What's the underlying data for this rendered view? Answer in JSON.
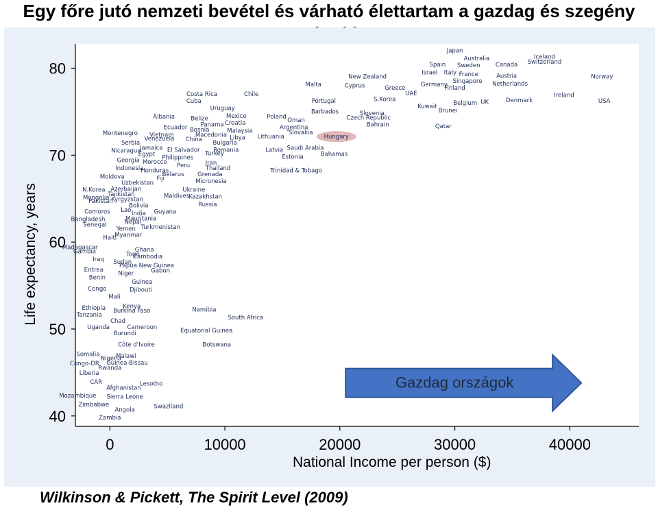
{
  "title": "Egy főre jutó nemzeti bevétel és várható élettartam a gazdag és szegény országokban",
  "caption": "Wilkinson & Pickett, The Spirit Level (2009)",
  "chart_data": {
    "type": "scatter",
    "xlabel": "National Income per person ($)",
    "ylabel": "Life expectancy, years",
    "xlim": [
      -3000,
      46000
    ],
    "ylim": [
      38.8,
      82.8
    ],
    "xticks": [
      0,
      10000,
      20000,
      30000,
      40000
    ],
    "yticks": [
      40,
      50,
      60,
      70,
      80
    ],
    "grid": false,
    "marker": "country name label",
    "highlight": {
      "label": "Hungary",
      "color": "#d9a6a6"
    },
    "annotation": {
      "text": "Gazdag országok",
      "arrow_from_x": 20500,
      "arrow_to_x": 41000,
      "y": 43.8,
      "fill": "#4472c4",
      "text_color": "#1f2a3a"
    },
    "points": [
      {
        "label": "Japan",
        "x": 30000,
        "y": 81.8
      },
      {
        "label": "Australia",
        "x": 31900,
        "y": 80.9
      },
      {
        "label": "Iceland",
        "x": 37800,
        "y": 81.1
      },
      {
        "label": "Switzerland",
        "x": 37800,
        "y": 80.5
      },
      {
        "label": "Spain",
        "x": 28500,
        "y": 80.2
      },
      {
        "label": "Sweden",
        "x": 31200,
        "y": 80.1
      },
      {
        "label": "Canada",
        "x": 34500,
        "y": 80.2
      },
      {
        "label": "Israel",
        "x": 27800,
        "y": 79.3
      },
      {
        "label": "Italy",
        "x": 29600,
        "y": 79.3
      },
      {
        "label": "France",
        "x": 31200,
        "y": 79.1
      },
      {
        "label": "Austria",
        "x": 34500,
        "y": 78.9
      },
      {
        "label": "Norway",
        "x": 42800,
        "y": 78.8
      },
      {
        "label": "New Zealand",
        "x": 22400,
        "y": 78.8
      },
      {
        "label": "Cyprus",
        "x": 21300,
        "y": 77.8
      },
      {
        "label": "Germany",
        "x": 28200,
        "y": 77.9
      },
      {
        "label": "Singapore",
        "x": 31100,
        "y": 78.3
      },
      {
        "label": "Netherlands",
        "x": 34800,
        "y": 78.0
      },
      {
        "label": "Malta",
        "x": 17700,
        "y": 77.9
      },
      {
        "label": "Greece",
        "x": 24800,
        "y": 77.5
      },
      {
        "label": "Finland",
        "x": 30000,
        "y": 77.5
      },
      {
        "label": "UAE",
        "x": 26200,
        "y": 76.9
      },
      {
        "label": "Ireland",
        "x": 39500,
        "y": 76.7
      },
      {
        "label": "USA",
        "x": 43000,
        "y": 76.0
      },
      {
        "label": "Chile",
        "x": 12300,
        "y": 76.8
      },
      {
        "label": "Costa Rica",
        "x": 8000,
        "y": 76.8
      },
      {
        "label": "Cuba",
        "x": 7300,
        "y": 76.0
      },
      {
        "label": "Portugal",
        "x": 18600,
        "y": 76.0
      },
      {
        "label": "S.Korea",
        "x": 23900,
        "y": 76.2
      },
      {
        "label": "Belgium",
        "x": 30900,
        "y": 75.8
      },
      {
        "label": "UK",
        "x": 32600,
        "y": 75.9
      },
      {
        "label": "Denmark",
        "x": 35600,
        "y": 76.1
      },
      {
        "label": "Kuwait",
        "x": 27600,
        "y": 75.4
      },
      {
        "label": "Brunei",
        "x": 29400,
        "y": 74.9
      },
      {
        "label": "Uruguay",
        "x": 9800,
        "y": 75.2
      },
      {
        "label": "Barbados",
        "x": 18700,
        "y": 74.8
      },
      {
        "label": "Slovenia",
        "x": 22800,
        "y": 74.6
      },
      {
        "label": "Czech Republic",
        "x": 22500,
        "y": 74.1
      },
      {
        "label": "Albania",
        "x": 4700,
        "y": 74.2
      },
      {
        "label": "Mexico",
        "x": 11000,
        "y": 74.3
      },
      {
        "label": "Poland",
        "x": 14500,
        "y": 74.2
      },
      {
        "label": "Belize",
        "x": 7800,
        "y": 74.0
      },
      {
        "label": "Oman",
        "x": 16200,
        "y": 73.8
      },
      {
        "label": "Croatia",
        "x": 10900,
        "y": 73.5
      },
      {
        "label": "Bahrain",
        "x": 23300,
        "y": 73.3
      },
      {
        "label": "Panama",
        "x": 8900,
        "y": 73.3
      },
      {
        "label": "Qatar",
        "x": 29000,
        "y": 73.1
      },
      {
        "label": "Argentina",
        "x": 16000,
        "y": 73.0
      },
      {
        "label": "Ecuador",
        "x": 5700,
        "y": 73.0
      },
      {
        "label": "Bosnia",
        "x": 7800,
        "y": 72.7
      },
      {
        "label": "Malaysia",
        "x": 11300,
        "y": 72.6
      },
      {
        "label": "Slovakia",
        "x": 16600,
        "y": 72.4
      },
      {
        "label": "Montenegro",
        "x": 900,
        "y": 72.3
      },
      {
        "label": "Vietnam",
        "x": 4500,
        "y": 72.1
      },
      {
        "label": "Macedonia",
        "x": 8800,
        "y": 72.1
      },
      {
        "label": "Libya",
        "x": 11100,
        "y": 71.8
      },
      {
        "label": "Lithuania",
        "x": 14000,
        "y": 71.9
      },
      {
        "label": "Hungary",
        "x": 19700,
        "y": 71.9
      },
      {
        "label": "Venezuela",
        "x": 4300,
        "y": 71.7
      },
      {
        "label": "China",
        "x": 7300,
        "y": 71.6
      },
      {
        "label": "Serbia",
        "x": 1800,
        "y": 71.2
      },
      {
        "label": "Bulgaria",
        "x": 10000,
        "y": 71.2
      },
      {
        "label": "Jamaica",
        "x": 3600,
        "y": 70.6
      },
      {
        "label": "El Salvador",
        "x": 6400,
        "y": 70.4
      },
      {
        "label": "Romania",
        "x": 10100,
        "y": 70.4
      },
      {
        "label": "Latvia",
        "x": 14300,
        "y": 70.4
      },
      {
        "label": "Saudi Arabia",
        "x": 17000,
        "y": 70.6
      },
      {
        "label": "Nicaragua",
        "x": 1400,
        "y": 70.3
      },
      {
        "label": "Egypt",
        "x": 3200,
        "y": 69.9
      },
      {
        "label": "Turkey",
        "x": 9100,
        "y": 70.0
      },
      {
        "label": "Bahamas",
        "x": 19500,
        "y": 69.9
      },
      {
        "label": "Estonia",
        "x": 15900,
        "y": 69.6
      },
      {
        "label": "Philippines",
        "x": 5900,
        "y": 69.5
      },
      {
        "label": "Georgia",
        "x": 1600,
        "y": 69.2
      },
      {
        "label": "Morocco",
        "x": 3900,
        "y": 69.0
      },
      {
        "label": "Iran",
        "x": 8800,
        "y": 68.9
      },
      {
        "label": "Peru",
        "x": 6400,
        "y": 68.6
      },
      {
        "label": "Indonesia",
        "x": 1700,
        "y": 68.3
      },
      {
        "label": "Thailand",
        "x": 9400,
        "y": 68.3
      },
      {
        "label": "Honduras",
        "x": 3900,
        "y": 68.0
      },
      {
        "label": "Trinidad & Tobago",
        "x": 16200,
        "y": 68.0
      },
      {
        "label": "Belarus",
        "x": 5500,
        "y": 67.6
      },
      {
        "label": "Grenada",
        "x": 8700,
        "y": 67.6
      },
      {
        "label": "Moldova",
        "x": 200,
        "y": 67.3
      },
      {
        "label": "Fiji",
        "x": 4400,
        "y": 67.1
      },
      {
        "label": "Micronesia",
        "x": 8800,
        "y": 66.8
      },
      {
        "label": "Uzbekistan",
        "x": 2400,
        "y": 66.6
      },
      {
        "label": "Azerbaijan",
        "x": 1400,
        "y": 65.9
      },
      {
        "label": "N.Korea",
        "x": -1400,
        "y": 65.8
      },
      {
        "label": "Ukraine",
        "x": 7300,
        "y": 65.8
      },
      {
        "label": "Tajikistan",
        "x": 1000,
        "y": 65.3
      },
      {
        "label": "Maldives",
        "x": 5800,
        "y": 65.1
      },
      {
        "label": "Kazakhstan",
        "x": 8300,
        "y": 65.0
      },
      {
        "label": "Mongolia",
        "x": -1200,
        "y": 64.9
      },
      {
        "label": "Kyrgyzstan",
        "x": 1500,
        "y": 64.7
      },
      {
        "label": "Pakistan",
        "x": -800,
        "y": 64.5
      },
      {
        "label": "Russia",
        "x": 8500,
        "y": 64.1
      },
      {
        "label": "Bolivia",
        "x": 2500,
        "y": 64.0
      },
      {
        "label": "Comoros",
        "x": -1100,
        "y": 63.3
      },
      {
        "label": "Lao",
        "x": 1400,
        "y": 63.5
      },
      {
        "label": "Guyana",
        "x": 4800,
        "y": 63.3
      },
      {
        "label": "India",
        "x": 2500,
        "y": 63.1
      },
      {
        "label": "Bangladesh",
        "x": -1900,
        "y": 62.4
      },
      {
        "label": "Mauritania",
        "x": 2700,
        "y": 62.5
      },
      {
        "label": "Nepal",
        "x": 2000,
        "y": 62.1
      },
      {
        "label": "Senegal",
        "x": -1300,
        "y": 61.8
      },
      {
        "label": "Turkmenistan",
        "x": 4400,
        "y": 61.5
      },
      {
        "label": "Yemen",
        "x": 1400,
        "y": 61.3
      },
      {
        "label": "Myanmar",
        "x": 1600,
        "y": 60.6
      },
      {
        "label": "Haiti",
        "x": 0,
        "y": 60.3
      },
      {
        "label": "Madagascar",
        "x": -2600,
        "y": 59.2
      },
      {
        "label": "Ghana",
        "x": 3000,
        "y": 58.9
      },
      {
        "label": "Gambia",
        "x": -2200,
        "y": 58.7
      },
      {
        "label": "Togo",
        "x": 2000,
        "y": 58.4
      },
      {
        "label": "Cambodia",
        "x": 3300,
        "y": 58.1
      },
      {
        "label": "Iraq",
        "x": -1000,
        "y": 57.8
      },
      {
        "label": "Sudan",
        "x": 1100,
        "y": 57.5
      },
      {
        "label": "Papua New Guinea",
        "x": 3200,
        "y": 57.1
      },
      {
        "label": "Eritrea",
        "x": -1400,
        "y": 56.6
      },
      {
        "label": "Gabon",
        "x": 4400,
        "y": 56.5
      },
      {
        "label": "Niger",
        "x": 1400,
        "y": 56.2
      },
      {
        "label": "Benin",
        "x": -1100,
        "y": 55.7
      },
      {
        "label": "Guinea",
        "x": 2800,
        "y": 55.2
      },
      {
        "label": "Congo",
        "x": -1100,
        "y": 54.4
      },
      {
        "label": "Djibouti",
        "x": 2700,
        "y": 54.3
      },
      {
        "label": "Mali",
        "x": 400,
        "y": 53.5
      },
      {
        "label": "Kenya",
        "x": 1900,
        "y": 52.4
      },
      {
        "label": "Ethiopia",
        "x": -1400,
        "y": 52.2
      },
      {
        "label": "Burkina Faso",
        "x": 1900,
        "y": 51.9
      },
      {
        "label": "Namibia",
        "x": 8200,
        "y": 52.0
      },
      {
        "label": "Tanzania",
        "x": -1800,
        "y": 51.4
      },
      {
        "label": "South Africa",
        "x": 11800,
        "y": 51.1
      },
      {
        "label": "Chad",
        "x": 700,
        "y": 50.7
      },
      {
        "label": "Uganda",
        "x": -1000,
        "y": 50.0
      },
      {
        "label": "Cameroon",
        "x": 2800,
        "y": 50.0
      },
      {
        "label": "Burundi",
        "x": 1300,
        "y": 49.3
      },
      {
        "label": "Equatorial Guinea",
        "x": 8400,
        "y": 49.6
      },
      {
        "label": "Côte d'Ivoire",
        "x": 2300,
        "y": 48.0
      },
      {
        "label": "Botswana",
        "x": 9300,
        "y": 48.0
      },
      {
        "label": "Somalia",
        "x": -1900,
        "y": 46.9
      },
      {
        "label": "Malawi",
        "x": 1400,
        "y": 46.7
      },
      {
        "label": "Nigeria",
        "x": 100,
        "y": 46.4
      },
      {
        "label": "Guinea-Bissau",
        "x": 1500,
        "y": 45.9
      },
      {
        "label": "Congo-DR",
        "x": -2200,
        "y": 45.8
      },
      {
        "label": "Rwanda",
        "x": 0,
        "y": 45.3
      },
      {
        "label": "Liberia",
        "x": -1800,
        "y": 44.7
      },
      {
        "label": "CAR",
        "x": -1200,
        "y": 43.7
      },
      {
        "label": "Lesotho",
        "x": 3600,
        "y": 43.5
      },
      {
        "label": "Afghanistan",
        "x": 1200,
        "y": 43.0
      },
      {
        "label": "Mozambique",
        "x": -2800,
        "y": 42.1
      },
      {
        "label": "Sierra Leone",
        "x": 1300,
        "y": 42.0
      },
      {
        "label": "Zimbabwe",
        "x": -1400,
        "y": 41.1
      },
      {
        "label": "Swaziland",
        "x": 5100,
        "y": 40.9
      },
      {
        "label": "Angola",
        "x": 1300,
        "y": 40.5
      },
      {
        "label": "Zambia",
        "x": 0,
        "y": 39.6
      }
    ]
  }
}
